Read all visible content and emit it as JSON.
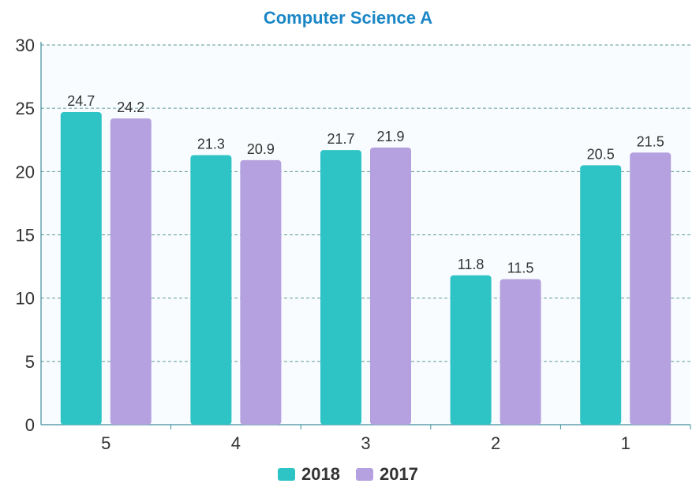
{
  "chart_data": {
    "type": "bar",
    "title": "Computer Science A",
    "categories": [
      "5",
      "4",
      "3",
      "2",
      "1"
    ],
    "series": [
      {
        "name": "2018",
        "values": [
          24.7,
          21.3,
          21.7,
          11.8,
          20.5
        ],
        "color": "#2ec4c6"
      },
      {
        "name": "2017",
        "values": [
          24.2,
          20.9,
          21.9,
          11.5,
          21.5
        ],
        "color": "#b5a1df"
      }
    ],
    "ylim": [
      0,
      30
    ],
    "yticks": [
      0,
      5,
      10,
      15,
      20,
      25,
      30
    ],
    "xlabel": "",
    "ylabel": "",
    "grid": true,
    "legend_position": "bottom",
    "colors": {
      "title": "#1a86c6",
      "axis": "#3f8e9c",
      "grid": "#5e9a9a",
      "plot_bg": "#f9fcfe"
    }
  }
}
